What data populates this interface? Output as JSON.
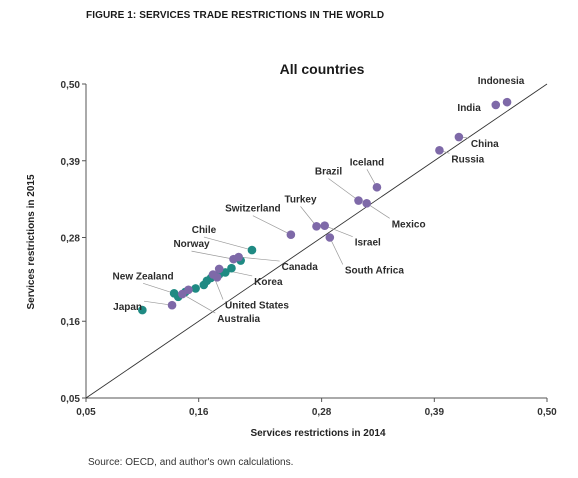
{
  "figure_title": "FIGURE 1: SERVICES TRADE RESTRICTIONS IN THE WORLD",
  "source": "Source: OECD, and author's own calculations.",
  "colors": {
    "purple": "#7e69a8",
    "teal": "#1f8a83",
    "axis": "#555555"
  },
  "chart_data": {
    "type": "scatter",
    "title": "All countries",
    "xlabel": "Services restrictions in 2014",
    "ylabel": "Services restrictions in 2015",
    "xlim": [
      0.05,
      0.5
    ],
    "ylim": [
      0.05,
      0.5
    ],
    "xticks": [
      "0,05",
      "0,16",
      "0,28",
      "0,39",
      "0,50"
    ],
    "yticks": [
      "0,05",
      "0,16",
      "0,28",
      "0,39",
      "0,50"
    ],
    "tick_values": [
      0.05,
      0.16,
      0.28,
      0.39,
      0.5
    ],
    "grid": false,
    "reference_line": "y = x",
    "labeled_points": [
      {
        "name": "Indonesia",
        "x": 0.461,
        "y": 0.474,
        "color": "purple"
      },
      {
        "name": "India",
        "x": 0.45,
        "y": 0.47,
        "color": "purple"
      },
      {
        "name": "China",
        "x": 0.414,
        "y": 0.424,
        "color": "purple"
      },
      {
        "name": "Russia",
        "x": 0.395,
        "y": 0.405,
        "color": "purple"
      },
      {
        "name": "Iceland",
        "x": 0.334,
        "y": 0.352,
        "color": "purple"
      },
      {
        "name": "Brazil",
        "x": 0.316,
        "y": 0.333,
        "color": "purple"
      },
      {
        "name": "Mexico",
        "x": 0.324,
        "y": 0.329,
        "color": "purple"
      },
      {
        "name": "Turkey",
        "x": 0.275,
        "y": 0.296,
        "color": "purple"
      },
      {
        "name": "Switzerland",
        "x": 0.25,
        "y": 0.284,
        "color": "purple"
      },
      {
        "name": "Israel",
        "x": 0.283,
        "y": 0.297,
        "color": "purple"
      },
      {
        "name": "South Africa",
        "x": 0.288,
        "y": 0.28,
        "color": "purple"
      },
      {
        "name": "Chile",
        "x": 0.212,
        "y": 0.262,
        "color": "teal"
      },
      {
        "name": "Norway",
        "x": 0.194,
        "y": 0.249,
        "color": "purple"
      },
      {
        "name": "Canada",
        "x": 0.199,
        "y": 0.252,
        "color": "purple"
      },
      {
        "name": "Korea",
        "x": 0.18,
        "y": 0.235,
        "color": "purple"
      },
      {
        "name": "United States",
        "x": 0.174,
        "y": 0.227,
        "color": "purple"
      },
      {
        "name": "New Zealand",
        "x": 0.136,
        "y": 0.2,
        "color": "teal"
      },
      {
        "name": "Japan",
        "x": 0.134,
        "y": 0.183,
        "color": "purple"
      },
      {
        "name": "Australia",
        "x": 0.144,
        "y": 0.199,
        "color": "purple"
      }
    ],
    "unlabeled_points": [
      {
        "x": 0.157,
        "y": 0.207,
        "color": "teal"
      },
      {
        "x": 0.165,
        "y": 0.212,
        "color": "teal"
      },
      {
        "x": 0.168,
        "y": 0.218,
        "color": "teal"
      },
      {
        "x": 0.172,
        "y": 0.222,
        "color": "teal"
      },
      {
        "x": 0.18,
        "y": 0.227,
        "color": "teal"
      },
      {
        "x": 0.186,
        "y": 0.23,
        "color": "teal"
      },
      {
        "x": 0.192,
        "y": 0.236,
        "color": "teal"
      },
      {
        "x": 0.201,
        "y": 0.247,
        "color": "teal"
      },
      {
        "x": 0.14,
        "y": 0.195,
        "color": "teal"
      },
      {
        "x": 0.147,
        "y": 0.202,
        "color": "teal"
      },
      {
        "x": 0.105,
        "y": 0.176,
        "color": "teal"
      },
      {
        "x": 0.15,
        "y": 0.205,
        "color": "purple"
      },
      {
        "x": 0.178,
        "y": 0.223,
        "color": "purple"
      }
    ]
  }
}
